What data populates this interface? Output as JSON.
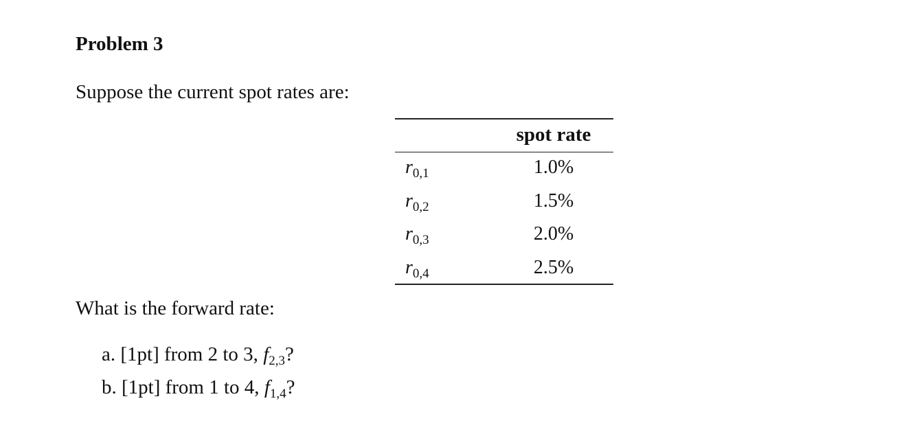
{
  "header": {
    "title": "Problem 3"
  },
  "intro": "Suppose the current spot rates are:",
  "table": {
    "header": "spot rate",
    "rows": [
      {
        "symbol": "r",
        "subscript": "0,1",
        "value": "1.0%"
      },
      {
        "symbol": "r",
        "subscript": "0,2",
        "value": "1.5%"
      },
      {
        "symbol": "r",
        "subscript": "0,3",
        "value": "2.0%"
      },
      {
        "symbol": "r",
        "subscript": "0,4",
        "value": "2.5%"
      }
    ]
  },
  "question": "What is the forward rate:",
  "items": [
    {
      "label": "a.",
      "text": "[1pt] from 2 to 3,",
      "symbol": "f",
      "subscript": "2,3",
      "end": "?"
    },
    {
      "label": "b.",
      "text": "[1pt] from 1 to 4,",
      "symbol": "f",
      "subscript": "1,4",
      "end": "?"
    }
  ]
}
